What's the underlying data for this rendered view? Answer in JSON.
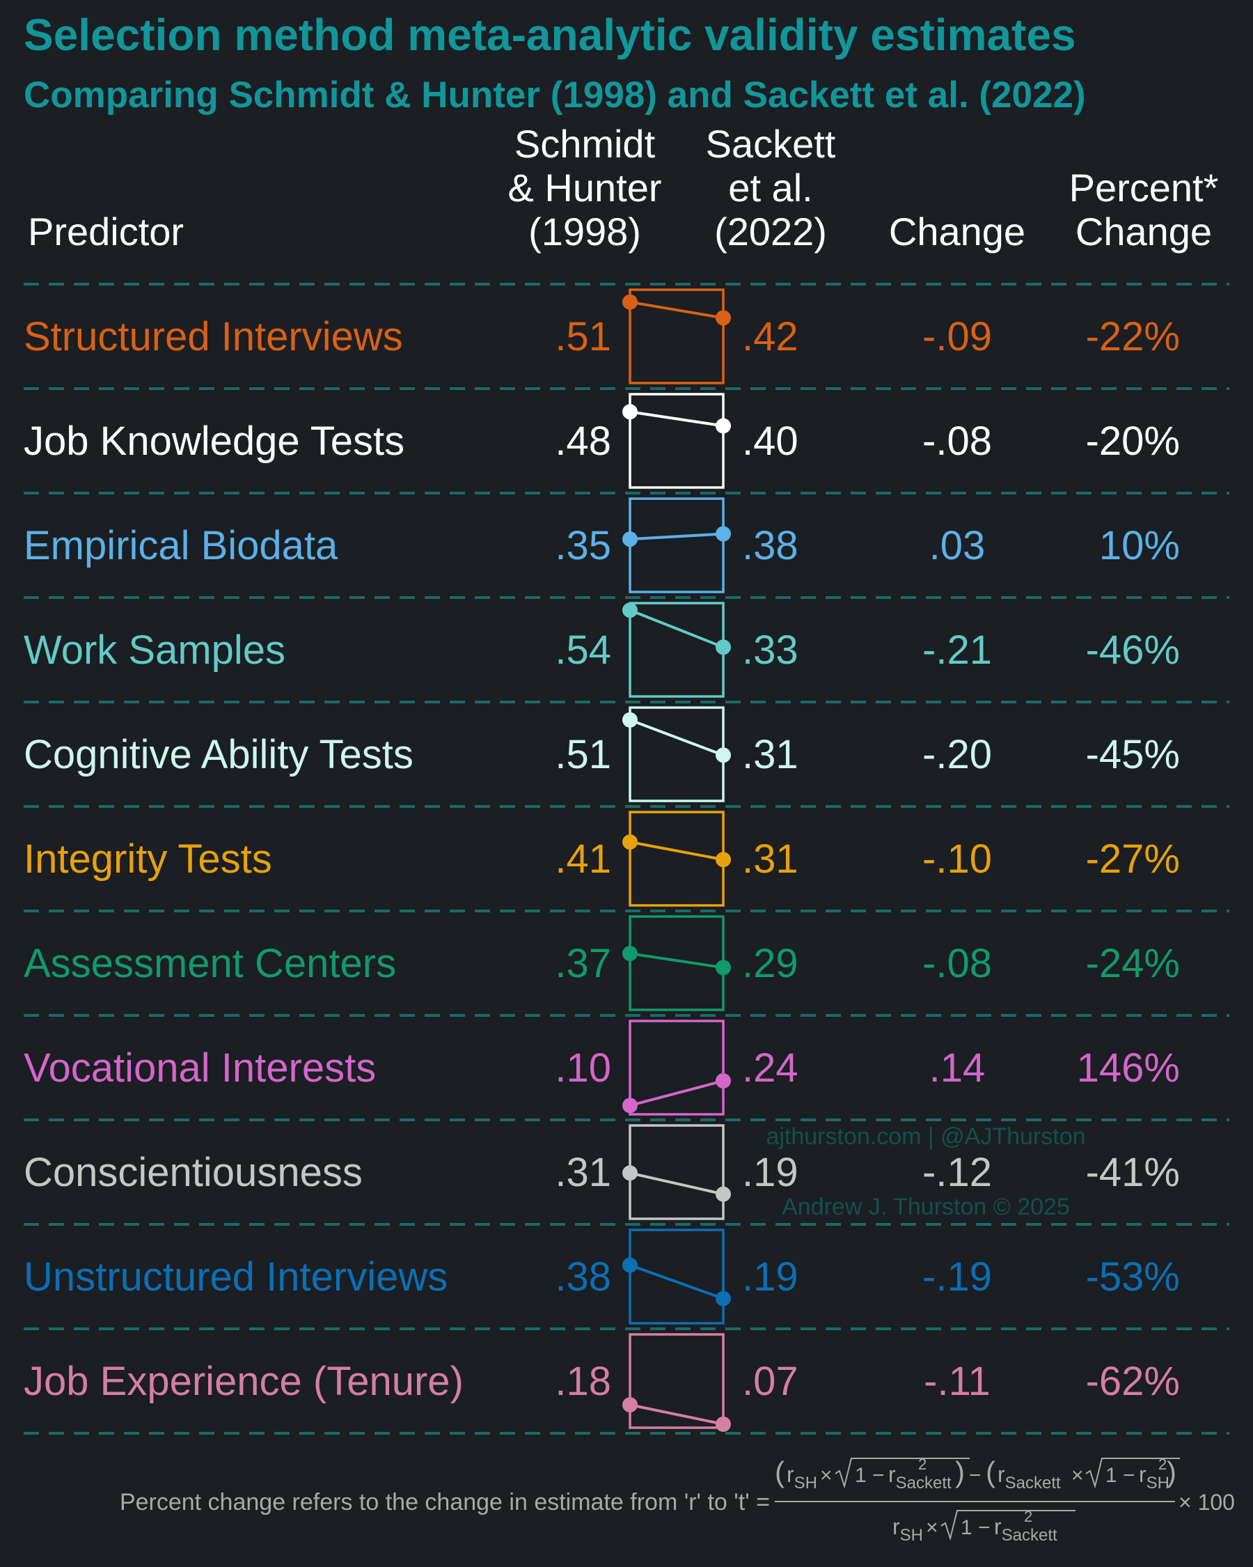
{
  "chart_data": {
    "type": "table",
    "title": "Selection method meta-analytic validity estimates",
    "subtitle": "Comparing Schmidt & Hunter (1998) and Sackett et al. (2022)",
    "title_color": "#11969a",
    "columns": {
      "predictor": [
        "Predictor"
      ],
      "sh": [
        "Schmidt",
        "& Hunter",
        "(1998)"
      ],
      "sackett": [
        "Sackett",
        "et al.",
        "(2022)"
      ],
      "change": [
        "Change"
      ],
      "pct": [
        "Percent*",
        "Change"
      ]
    },
    "rows": [
      {
        "predictor": "Structured Interviews",
        "sh": 0.51,
        "sackett": 0.42,
        "sh_label": ".51",
        "sackett_label": ".42",
        "change": "-.09",
        "pct": "-22%",
        "color": "#d96115"
      },
      {
        "predictor": "Job Knowledge Tests",
        "sh": 0.48,
        "sackett": 0.4,
        "sh_label": ".48",
        "sackett_label": ".40",
        "change": "-.08",
        "pct": "-20%",
        "color": "#ffffff"
      },
      {
        "predictor": "Empirical Biodata",
        "sh": 0.35,
        "sackett": 0.38,
        "sh_label": ".35",
        "sackett_label": ".38",
        "change": ".03",
        "pct": "10%",
        "color": "#5bb1e8"
      },
      {
        "predictor": "Work Samples",
        "sh": 0.54,
        "sackett": 0.33,
        "sh_label": ".54",
        "sackett_label": ".33",
        "change": "-.21",
        "pct": "-46%",
        "color": "#62cbc8"
      },
      {
        "predictor": "Cognitive Ability Tests",
        "sh": 0.51,
        "sackett": 0.31,
        "sh_label": ".51",
        "sackett_label": ".31",
        "change": "-.20",
        "pct": "-45%",
        "color": "#cdf7ee"
      },
      {
        "predictor": "Integrity Tests",
        "sh": 0.41,
        "sackett": 0.31,
        "sh_label": ".41",
        "sackett_label": ".31",
        "change": "-.10",
        "pct": "-27%",
        "color": "#e7a20b"
      },
      {
        "predictor": "Assessment Centers",
        "sh": 0.37,
        "sackett": 0.29,
        "sh_label": ".37",
        "sackett_label": ".29",
        "change": "-.08",
        "pct": "-24%",
        "color": "#119a6b"
      },
      {
        "predictor": "Vocational Interests",
        "sh": 0.1,
        "sackett": 0.24,
        "sh_label": ".10",
        "sackett_label": ".24",
        "change": ".14",
        "pct": "146%",
        "color": "#d466cc"
      },
      {
        "predictor": "Conscientiousness",
        "sh": 0.31,
        "sackett": 0.19,
        "sh_label": ".31",
        "sackett_label": ".19",
        "change": "-.12",
        "pct": "-41%",
        "color": "#c6c6c6"
      },
      {
        "predictor": "Unstructured Interviews",
        "sh": 0.38,
        "sackett": 0.19,
        "sh_label": ".38",
        "sackett_label": ".19",
        "change": "-.19",
        "pct": "-53%",
        "color": "#0b6fb5"
      },
      {
        "predictor": "Job Experience (Tenure)",
        "sh": 0.18,
        "sackett": 0.07,
        "sh_label": ".18",
        "sackett_label": ".07",
        "change": "-.11",
        "pct": "-62%",
        "color": "#d57ea6"
      }
    ],
    "slope_ylim": [
      0.05,
      0.58
    ],
    "divider_color": "#1b6a68",
    "watermark": [
      "ajthurston.com | @AJThurston",
      "Andrew J. Thurston © 2025"
    ],
    "footnote": {
      "text": "Percent change refers to the change in estimate from 'r' to 't' =",
      "times100": "× 100",
      "formula": {
        "r_sh": "r",
        "r_sh_sub": "SH",
        "r_sk": "r",
        "r_sk_sub": "Sackett",
        "sq": "2",
        "one_minus": "1 −",
        "times": "×",
        "minus": "−",
        "lp": "(",
        "rp": ")"
      }
    }
  }
}
